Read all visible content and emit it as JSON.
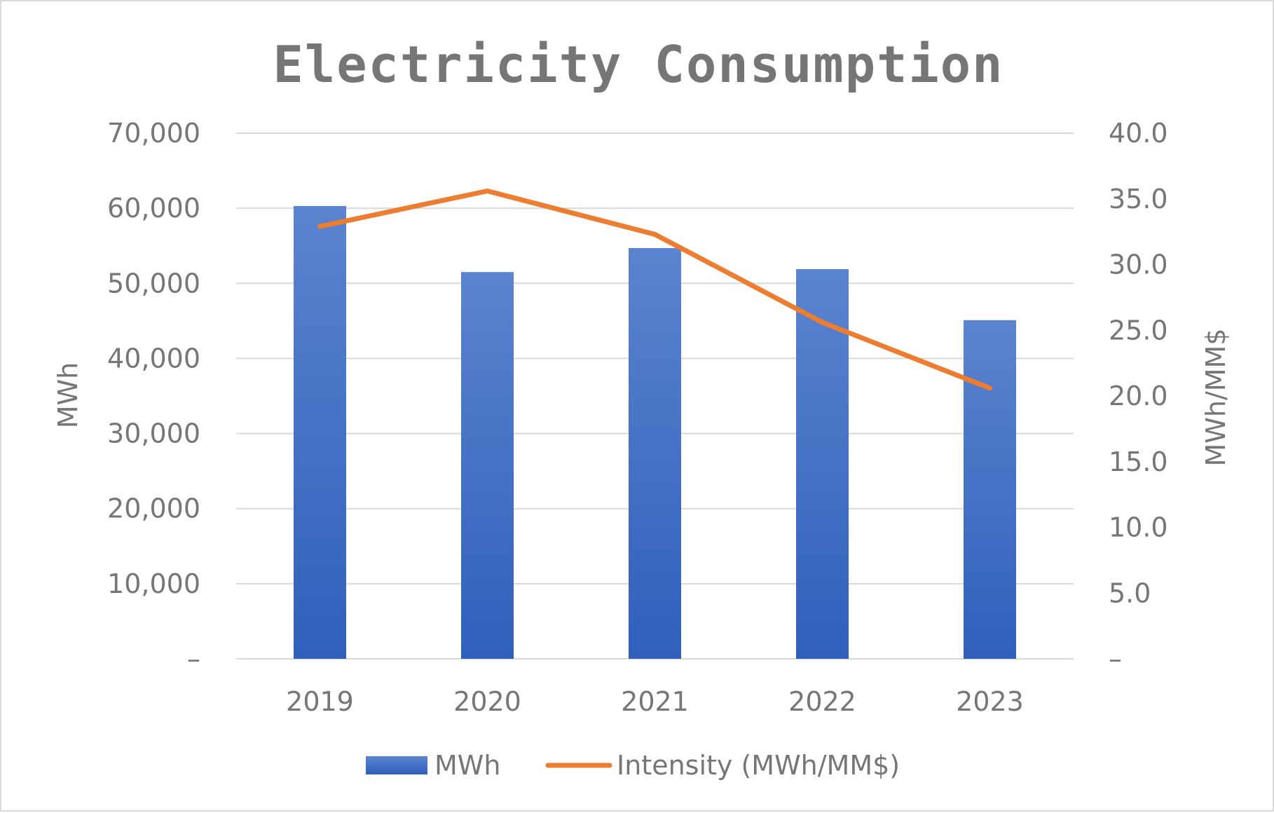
{
  "chart_data": {
    "type": "bar",
    "title": "Electricity Consumption",
    "categories": [
      "2019",
      "2020",
      "2021",
      "2022",
      "2023"
    ],
    "series": [
      {
        "name": "MWh",
        "type": "bar",
        "axis": "left",
        "values": [
          60300,
          51500,
          54700,
          51900,
          45100
        ],
        "color": "#4472c4"
      },
      {
        "name": "Intensity (MWh/MM$)",
        "type": "line",
        "axis": "right",
        "values": [
          32.9,
          35.6,
          32.3,
          25.6,
          20.6
        ],
        "color": "#ed7d31"
      }
    ],
    "ylabel": "MWh",
    "ylim": [
      0,
      70000
    ],
    "y_ticks": [
      "–",
      "10,000",
      "20,000",
      "30,000",
      "40,000",
      "50,000",
      "60,000",
      "70,000"
    ],
    "y2label": "MWh/MM$",
    "y2lim": [
      0,
      40
    ],
    "y2_ticks": [
      "–",
      "5.0",
      "10.0",
      "15.0",
      "20.0",
      "25.0",
      "30.0",
      "35.0",
      "40.0"
    ],
    "grid": true,
    "legend_position": "bottom"
  }
}
